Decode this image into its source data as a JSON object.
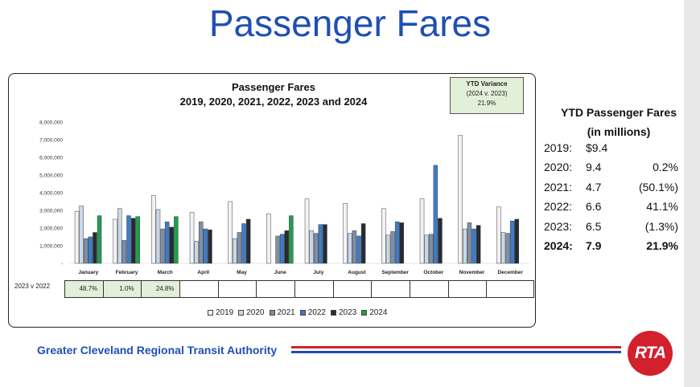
{
  "slide": {
    "title": "Passenger Fares"
  },
  "chart_data": {
    "type": "bar",
    "title": "Passenger Fares",
    "subtitle": "2019, 2020, 2021, 2022, 2023 and 2024",
    "categories": [
      "January",
      "February",
      "March",
      "April",
      "May",
      "June",
      "July",
      "August",
      "September",
      "October",
      "November",
      "December"
    ],
    "ylim": [
      0,
      8000000
    ],
    "yticks": [
      "-",
      "1,000,000",
      "2,000,000",
      "3,000,000",
      "4,000,000",
      "5,000,000",
      "6,000,000",
      "7,000,000",
      "8,000,000"
    ],
    "series": [
      {
        "name": "2019",
        "color": "#f2f2f2",
        "values": [
          2950000,
          2500000,
          3850000,
          2900000,
          3500000,
          2800000,
          3650000,
          3400000,
          3100000,
          3650000,
          7250000,
          3200000
        ]
      },
      {
        "name": "2020",
        "color": "#c9d8e8",
        "values": [
          3250000,
          3100000,
          3050000,
          1250000,
          1400000,
          null,
          1850000,
          1700000,
          1600000,
          1600000,
          1950000,
          1750000
        ]
      },
      {
        "name": "2021",
        "color": "#7f8fa6",
        "values": [
          1400000,
          1300000,
          1950000,
          2350000,
          1750000,
          1550000,
          1700000,
          1850000,
          1800000,
          1650000,
          2300000,
          1700000
        ]
      },
      {
        "name": "2022",
        "color": "#3d7cc9",
        "values": [
          1500000,
          2700000,
          2350000,
          1950000,
          2250000,
          1650000,
          2200000,
          1550000,
          2350000,
          5550000,
          1950000,
          2400000
        ]
      },
      {
        "name": "2023",
        "color": "#262b33",
        "values": [
          1750000,
          2550000,
          2050000,
          1900000,
          2500000,
          1850000,
          2200000,
          2250000,
          2300000,
          2550000,
          2150000,
          2500000
        ]
      },
      {
        "name": "2024",
        "color": "#1f9e4f",
        "values": [
          2700000,
          2650000,
          2650000,
          null,
          null,
          2700000,
          null,
          null,
          null,
          null,
          null,
          null
        ]
      }
    ],
    "legend": [
      "2019",
      "2020",
      "2021",
      "2022",
      "2023",
      "2024"
    ],
    "variance_box": {
      "title": "YTD Variance",
      "subtitle": "(2024 v. 2023)",
      "value": "21.9%"
    },
    "comparison": {
      "label": "2023 v 2022",
      "values": [
        "48.7%",
        "1.0%",
        "24.8%",
        "",
        "",
        "",
        "",
        "",
        "",
        "",
        "",
        ""
      ]
    }
  },
  "ytd_panel": {
    "title_line1": "YTD Passenger Fares",
    "title_line2": "(in millions)",
    "rows": [
      {
        "year": "2019:",
        "value": "$9.4",
        "change": ""
      },
      {
        "year": "2020:",
        "value": "9.4",
        "change": "0.2%"
      },
      {
        "year": "2021:",
        "value": "4.7",
        "change": "(50.1%)"
      },
      {
        "year": "2022:",
        "value": "6.6",
        "change": "41.1%"
      },
      {
        "year": "2023:",
        "value": "6.5",
        "change": "(1.3%)"
      },
      {
        "year": "2024:",
        "value": "7.9",
        "change": "21.9%"
      }
    ]
  },
  "footer": {
    "org_name": "Greater Cleveland Regional Transit Authority",
    "logo_text": "RTA",
    "stripe_red": "#d3202d",
    "stripe_blue": "#1f4fb4"
  }
}
